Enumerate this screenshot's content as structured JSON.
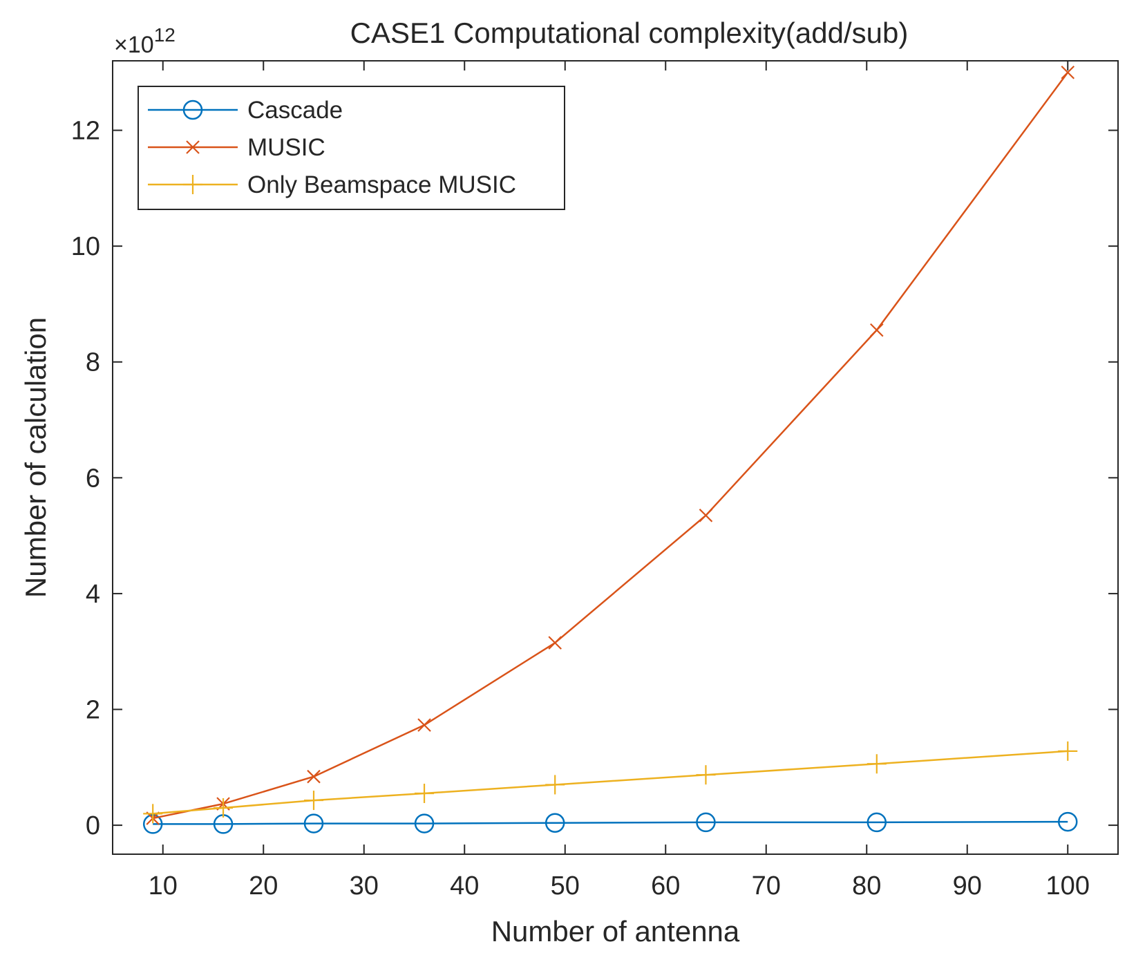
{
  "chart_data": {
    "type": "line",
    "title": "CASE1 Computational complexity(add/sub)",
    "xlabel": "Number of antenna",
    "ylabel": "Number of calculation",
    "y_exponent_base": "×10",
    "y_exponent_power": "12",
    "xlim": [
      5,
      105
    ],
    "ylim": [
      -0.5,
      13.2
    ],
    "xticks": [
      10,
      20,
      30,
      40,
      50,
      60,
      70,
      80,
      90,
      100
    ],
    "yticks": [
      0,
      2,
      4,
      6,
      8,
      10,
      12
    ],
    "grid": false,
    "legend_position": "top-left",
    "x": [
      9,
      16,
      25,
      36,
      49,
      64,
      81,
      100
    ],
    "series": [
      {
        "name": "Cascade",
        "color": "#0072BD",
        "marker": "circle",
        "values": [
          0.02,
          0.02,
          0.03,
          0.03,
          0.04,
          0.05,
          0.05,
          0.06
        ]
      },
      {
        "name": "MUSIC",
        "color": "#D95319",
        "marker": "x",
        "values": [
          0.12,
          0.37,
          0.84,
          1.73,
          3.15,
          5.35,
          8.55,
          13.0
        ]
      },
      {
        "name": "Only Beamspace MUSIC",
        "color": "#EDB120",
        "marker": "plus",
        "values": [
          0.2,
          0.3,
          0.43,
          0.55,
          0.7,
          0.87,
          1.06,
          1.28
        ]
      }
    ]
  }
}
